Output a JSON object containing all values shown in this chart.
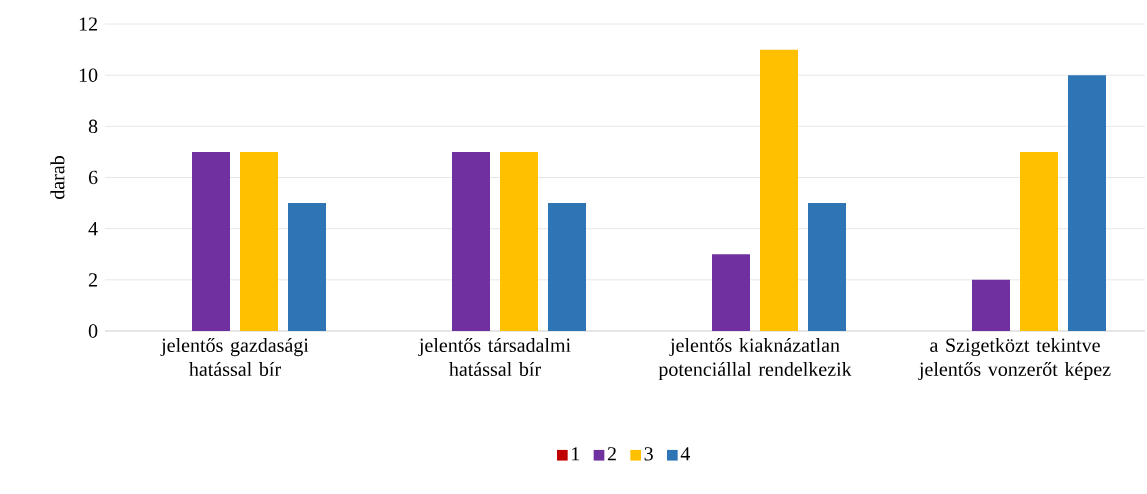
{
  "chart_data": {
    "type": "bar",
    "ylabel": "darab",
    "categories": [
      "jelentős gazdasági hatással bír",
      "jelentős társadalmi hatással bír",
      "jelentős kiaknázatlan potenciállal rendelkezik",
      "a Szigetközt tekintve jelentős vonzerőt képez"
    ],
    "series": [
      {
        "name": "1",
        "color": "#c00000",
        "values": [
          0,
          0,
          0,
          0
        ]
      },
      {
        "name": "2",
        "color": "#7030a0",
        "values": [
          7,
          7,
          3,
          2
        ]
      },
      {
        "name": "3",
        "color": "#ffc000",
        "values": [
          7,
          7,
          11,
          7
        ]
      },
      {
        "name": "4",
        "color": "#2e75b6",
        "values": [
          5,
          5,
          5,
          10
        ]
      }
    ],
    "ylim": [
      0,
      12
    ],
    "yticks": [
      0,
      2,
      4,
      6,
      8,
      10,
      12
    ],
    "grid": "y",
    "legend": "bottom"
  }
}
